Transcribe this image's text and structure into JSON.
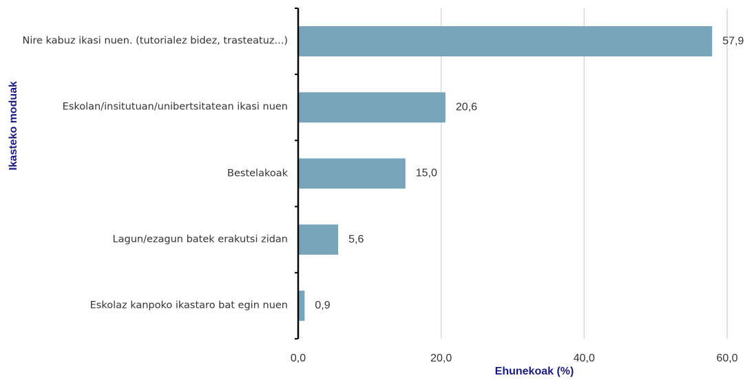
{
  "chart_data": {
    "type": "bar",
    "orientation": "horizontal",
    "categories": [
      "Nire kabuz ikasi nuen. (tutorialez bidez, trasteatuz...)",
      "Eskolan/insitutuan/unibertsitatean ikasi nuen",
      "Bestelakoak",
      "Lagun/ezagun batek erakutsi zidan",
      "Eskolaz kanpoko ikastaro bat egin nuen"
    ],
    "values": [
      57.9,
      20.6,
      15.0,
      5.6,
      0.9
    ],
    "value_labels": [
      "57,9",
      "20,6",
      "15,0",
      "5,6",
      "0,9"
    ],
    "color": "#77a4b9",
    "xlim": [
      0,
      60
    ],
    "xticks": [
      {
        "value": 0,
        "label": "0,0"
      },
      {
        "value": 20,
        "label": "20,0"
      },
      {
        "value": 40,
        "label": "40,0"
      },
      {
        "value": 60,
        "label": "60,0"
      }
    ],
    "grid": true,
    "xlabel": "Ehunekoak (%)",
    "ylabel": "Ikasteko moduak"
  }
}
